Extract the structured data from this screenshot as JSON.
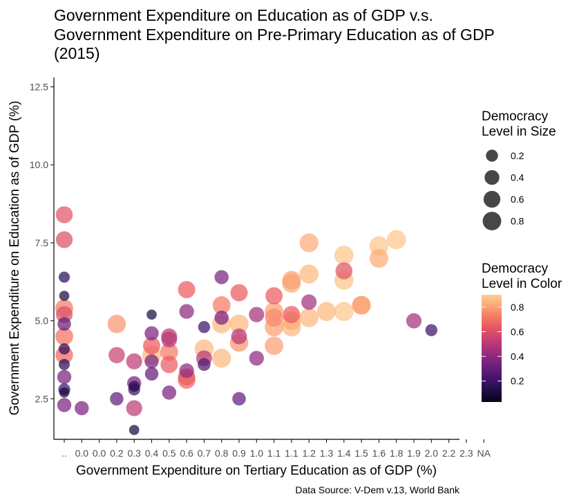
{
  "chart_data": {
    "type": "scatter",
    "title": [
      "Government Expenditure on Education as of GDP v.s.",
      "Government Expenditure on Pre-Primary Education as of GDP",
      "(2015)"
    ],
    "xlabel": "Government Expenditure on Tertiary Education as of GDP (%)",
    "ylabel": "Government Expenditure on Education as of GDP (%)",
    "caption": "Data Source: V-Dem v.13, World Bank",
    "x_categories": [
      "..",
      "0.0",
      "0.0",
      "0.2",
      "0.3",
      "0.4",
      "0.5",
      "0.6",
      "0.7",
      "0.8",
      "0.9",
      "1.0",
      "1.1",
      "1.1",
      "1.2",
      "1.3",
      "1.4",
      "1.5",
      "1.6",
      "1.8",
      "1.9",
      "2.0",
      "2.2",
      "2.3",
      "NA"
    ],
    "ylim": [
      1.2,
      12.8
    ],
    "y_ticks": [
      2.5,
      5.0,
      7.5,
      10.0,
      12.5
    ],
    "y_tick_labels": [
      "2.5",
      "5.0",
      "7.5",
      "10.0",
      "12.5"
    ],
    "grid": false,
    "legend_size": {
      "title": [
        "Democracy",
        "Level in Size"
      ],
      "values": [
        0.2,
        0.4,
        0.6,
        0.8
      ],
      "labels": [
        "0.2",
        "0.4",
        "0.6",
        "0.8"
      ]
    },
    "legend_color": {
      "title": [
        "Democracy",
        "Level in Color"
      ],
      "values": [
        0.8,
        0.6,
        0.4,
        0.2
      ],
      "labels": [
        "0.8",
        "0.6",
        "0.4",
        "0.2"
      ],
      "range": [
        0.03,
        0.9
      ],
      "palette": [
        "#000004",
        "#2c115f",
        "#721f81",
        "#b73779",
        "#f1605d",
        "#feb078",
        "#fcfdbf"
      ]
    },
    "legend_position": "right",
    "points": [
      {
        "x": 0,
        "y": 8.4,
        "d": 0.62
      },
      {
        "x": 0,
        "y": 7.6,
        "d": 0.6
      },
      {
        "x": 0,
        "y": 6.4,
        "d": 0.15
      },
      {
        "x": 0,
        "y": 5.8,
        "d": 0.1
      },
      {
        "x": 0,
        "y": 5.4,
        "d": 0.72
      },
      {
        "x": 0,
        "y": 5.2,
        "d": 0.6
      },
      {
        "x": 0,
        "y": 4.9,
        "d": 0.3
      },
      {
        "x": 0,
        "y": 4.5,
        "d": 0.7
      },
      {
        "x": 0,
        "y": 4.1,
        "d": 0.15
      },
      {
        "x": 0,
        "y": 3.9,
        "d": 0.68
      },
      {
        "x": 0,
        "y": 3.6,
        "d": 0.15
      },
      {
        "x": 0,
        "y": 3.2,
        "d": 0.35
      },
      {
        "x": 0,
        "y": 2.8,
        "d": 0.2
      },
      {
        "x": 0,
        "y": 2.7,
        "d": 0.1
      },
      {
        "x": 0,
        "y": 2.3,
        "d": 0.35
      },
      {
        "x": 1,
        "y": 2.2,
        "d": 0.35
      },
      {
        "x": 3,
        "y": 4.9,
        "d": 0.78
      },
      {
        "x": 3,
        "y": 3.9,
        "d": 0.55
      },
      {
        "x": 3,
        "y": 2.5,
        "d": 0.3
      },
      {
        "x": 4,
        "y": 3.7,
        "d": 0.52
      },
      {
        "x": 4,
        "y": 3.0,
        "d": 0.35
      },
      {
        "x": 4,
        "y": 2.9,
        "d": 0.15
      },
      {
        "x": 4,
        "y": 2.8,
        "d": 0.2
      },
      {
        "x": 4,
        "y": 2.2,
        "d": 0.52
      },
      {
        "x": 4,
        "y": 1.5,
        "d": 0.1
      },
      {
        "x": 5,
        "y": 5.2,
        "d": 0.1
      },
      {
        "x": 5,
        "y": 4.6,
        "d": 0.35
      },
      {
        "x": 5,
        "y": 4.2,
        "d": 0.65
      },
      {
        "x": 5,
        "y": 3.9,
        "d": 0.85
      },
      {
        "x": 5,
        "y": 3.7,
        "d": 0.35
      },
      {
        "x": 5,
        "y": 3.3,
        "d": 0.3
      },
      {
        "x": 6,
        "y": 4.5,
        "d": 0.52
      },
      {
        "x": 6,
        "y": 4.4,
        "d": 0.5
      },
      {
        "x": 6,
        "y": 4.0,
        "d": 0.72
      },
      {
        "x": 6,
        "y": 3.6,
        "d": 0.65
      },
      {
        "x": 6,
        "y": 2.7,
        "d": 0.35
      },
      {
        "x": 7,
        "y": 6.0,
        "d": 0.65
      },
      {
        "x": 7,
        "y": 5.3,
        "d": 0.4
      },
      {
        "x": 7,
        "y": 3.4,
        "d": 0.4
      },
      {
        "x": 7,
        "y": 3.2,
        "d": 0.65
      },
      {
        "x": 7,
        "y": 3.1,
        "d": 0.68
      },
      {
        "x": 8,
        "y": 4.8,
        "d": 0.2
      },
      {
        "x": 8,
        "y": 4.1,
        "d": 0.85
      },
      {
        "x": 8,
        "y": 3.8,
        "d": 0.5
      },
      {
        "x": 8,
        "y": 3.6,
        "d": 0.25
      },
      {
        "x": 9,
        "y": 6.4,
        "d": 0.35
      },
      {
        "x": 9,
        "y": 5.5,
        "d": 0.72
      },
      {
        "x": 9,
        "y": 5.1,
        "d": 0.35
      },
      {
        "x": 9,
        "y": 4.9,
        "d": 0.85
      },
      {
        "x": 9,
        "y": 3.8,
        "d": 0.85
      },
      {
        "x": 10,
        "y": 5.9,
        "d": 0.65
      },
      {
        "x": 10,
        "y": 4.9,
        "d": 0.85
      },
      {
        "x": 10,
        "y": 4.5,
        "d": 0.5
      },
      {
        "x": 10,
        "y": 4.3,
        "d": 0.78
      },
      {
        "x": 10,
        "y": 2.5,
        "d": 0.3
      },
      {
        "x": 11,
        "y": 5.2,
        "d": 0.45
      },
      {
        "x": 11,
        "y": 3.8,
        "d": 0.4
      },
      {
        "x": 12,
        "y": 5.8,
        "d": 0.65
      },
      {
        "x": 12,
        "y": 5.3,
        "d": 0.8
      },
      {
        "x": 12,
        "y": 5.1,
        "d": 0.75
      },
      {
        "x": 12,
        "y": 4.8,
        "d": 0.8
      },
      {
        "x": 12,
        "y": 4.2,
        "d": 0.8
      },
      {
        "x": 13,
        "y": 6.3,
        "d": 0.8
      },
      {
        "x": 13,
        "y": 6.2,
        "d": 0.82
      },
      {
        "x": 13,
        "y": 5.2,
        "d": 0.65
      },
      {
        "x": 13,
        "y": 5.0,
        "d": 0.82
      },
      {
        "x": 13,
        "y": 4.8,
        "d": 0.85
      },
      {
        "x": 14,
        "y": 7.5,
        "d": 0.82
      },
      {
        "x": 14,
        "y": 6.5,
        "d": 0.85
      },
      {
        "x": 14,
        "y": 5.6,
        "d": 0.45
      },
      {
        "x": 14,
        "y": 5.1,
        "d": 0.85
      },
      {
        "x": 15,
        "y": 5.3,
        "d": 0.85
      },
      {
        "x": 16,
        "y": 7.1,
        "d": 0.88
      },
      {
        "x": 16,
        "y": 6.6,
        "d": 0.62
      },
      {
        "x": 16,
        "y": 6.3,
        "d": 0.88
      },
      {
        "x": 16,
        "y": 5.3,
        "d": 0.88
      },
      {
        "x": 17,
        "y": 5.5,
        "d": 0.82
      },
      {
        "x": 17,
        "y": 5.5,
        "d": 0.8
      },
      {
        "x": 18,
        "y": 7.4,
        "d": 0.88
      },
      {
        "x": 18,
        "y": 7.0,
        "d": 0.82
      },
      {
        "x": 19,
        "y": 7.6,
        "d": 0.88
      },
      {
        "x": 20,
        "y": 5.0,
        "d": 0.45
      },
      {
        "x": 21,
        "y": 4.7,
        "d": 0.2
      }
    ]
  }
}
